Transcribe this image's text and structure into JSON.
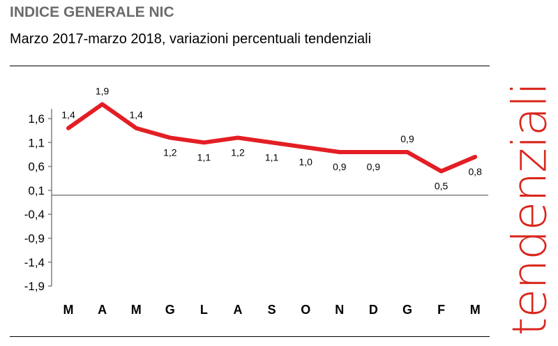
{
  "header": {
    "title": "INDICE GENERALE NIC",
    "subtitle": "Marzo 2017-marzo 2018, variazioni percentuali tendenziali"
  },
  "side_label": "tendenziali",
  "colors": {
    "line": "#e31e24",
    "accent_text": "#d9261c",
    "axis": "#808080"
  },
  "chart_data": {
    "type": "line",
    "title": "INDICE GENERALE NIC",
    "subtitle": "Marzo 2017-marzo 2018, variazioni percentuali tendenziali",
    "categories": [
      "M",
      "A",
      "M",
      "G",
      "L",
      "A",
      "S",
      "O",
      "N",
      "D",
      "G",
      "F",
      "M"
    ],
    "series": [
      {
        "name": "variazioni percentuali tendenziali",
        "values": [
          1.4,
          1.9,
          1.4,
          1.2,
          1.1,
          1.2,
          1.1,
          1.0,
          0.9,
          0.9,
          0.9,
          0.5,
          0.8
        ],
        "labels": [
          "1,4",
          "1,9",
          "1,4",
          "1,2",
          "1,1",
          "1,2",
          "1,1",
          "1,0",
          "0,9",
          "0,9",
          "0,9",
          "0,5",
          "0,8"
        ],
        "label_pos": [
          "above",
          "above",
          "above",
          "below",
          "below",
          "below",
          "below",
          "below",
          "below",
          "below",
          "above",
          "below",
          "below"
        ]
      }
    ],
    "yticks": [
      "1,6",
      "1,1",
      "0,6",
      "0,1",
      "-0,4",
      "-0,9",
      "-1,4",
      "-1,9"
    ],
    "ytick_values": [
      1.6,
      1.1,
      0.6,
      0.1,
      -0.4,
      -0.9,
      -1.4,
      -1.9
    ],
    "ylim": [
      -1.9,
      1.9
    ],
    "xlabel": "",
    "ylabel": "",
    "grid": false,
    "legend": "none"
  }
}
